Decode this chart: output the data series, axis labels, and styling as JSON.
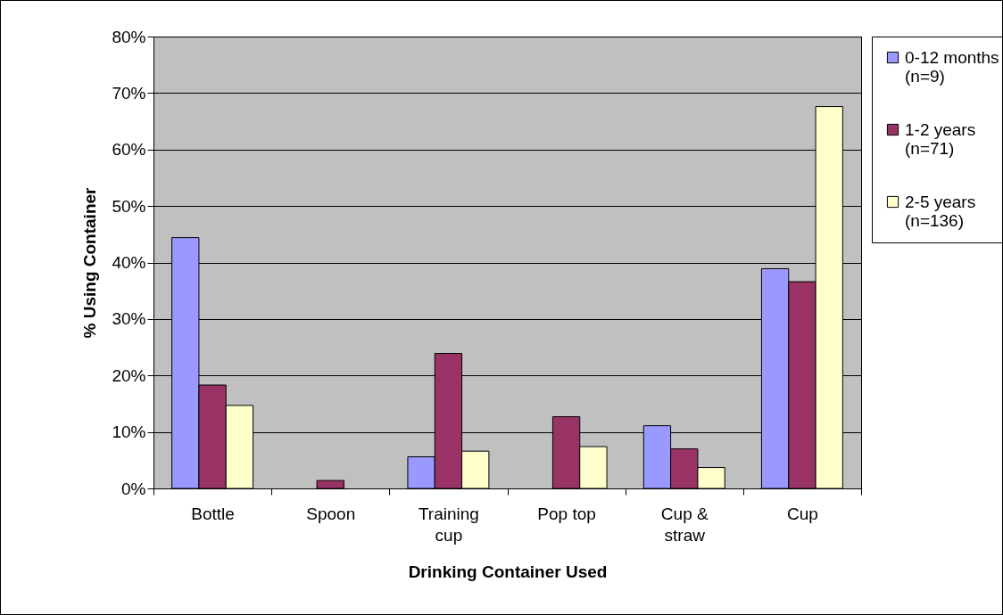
{
  "chart_data": {
    "type": "bar",
    "xlabel": "Drinking Container Used",
    "ylabel": "% Using Container",
    "categories": [
      "Bottle",
      "Spoon",
      "Training cup",
      "Pop top",
      "Cup & straw",
      "Cup"
    ],
    "series": [
      {
        "name": "0-12 months\n(n=9)",
        "color": "#9999ff",
        "values": [
          44.4,
          0,
          5.6,
          0,
          11.1,
          38.9
        ]
      },
      {
        "name": "1-2 years\n(n=71)",
        "color": "#993366",
        "values": [
          18.3,
          1.4,
          23.9,
          12.7,
          7.0,
          36.6
        ]
      },
      {
        "name": "2-5 years\n(n=136)",
        "color": "#ffffcc",
        "values": [
          14.7,
          0,
          6.6,
          7.4,
          3.7,
          67.6
        ]
      }
    ],
    "ylim": [
      0,
      80
    ],
    "yticks": [
      {
        "value": 0,
        "label": "0%"
      },
      {
        "value": 10,
        "label": "10%"
      },
      {
        "value": 20,
        "label": "20%"
      },
      {
        "value": 30,
        "label": "30%"
      },
      {
        "value": 40,
        "label": "40%"
      },
      {
        "value": 50,
        "label": "50%"
      },
      {
        "value": 60,
        "label": "60%"
      },
      {
        "value": 70,
        "label": "70%"
      },
      {
        "value": 80,
        "label": "80%"
      }
    ],
    "grid": "y",
    "legend": "right"
  }
}
